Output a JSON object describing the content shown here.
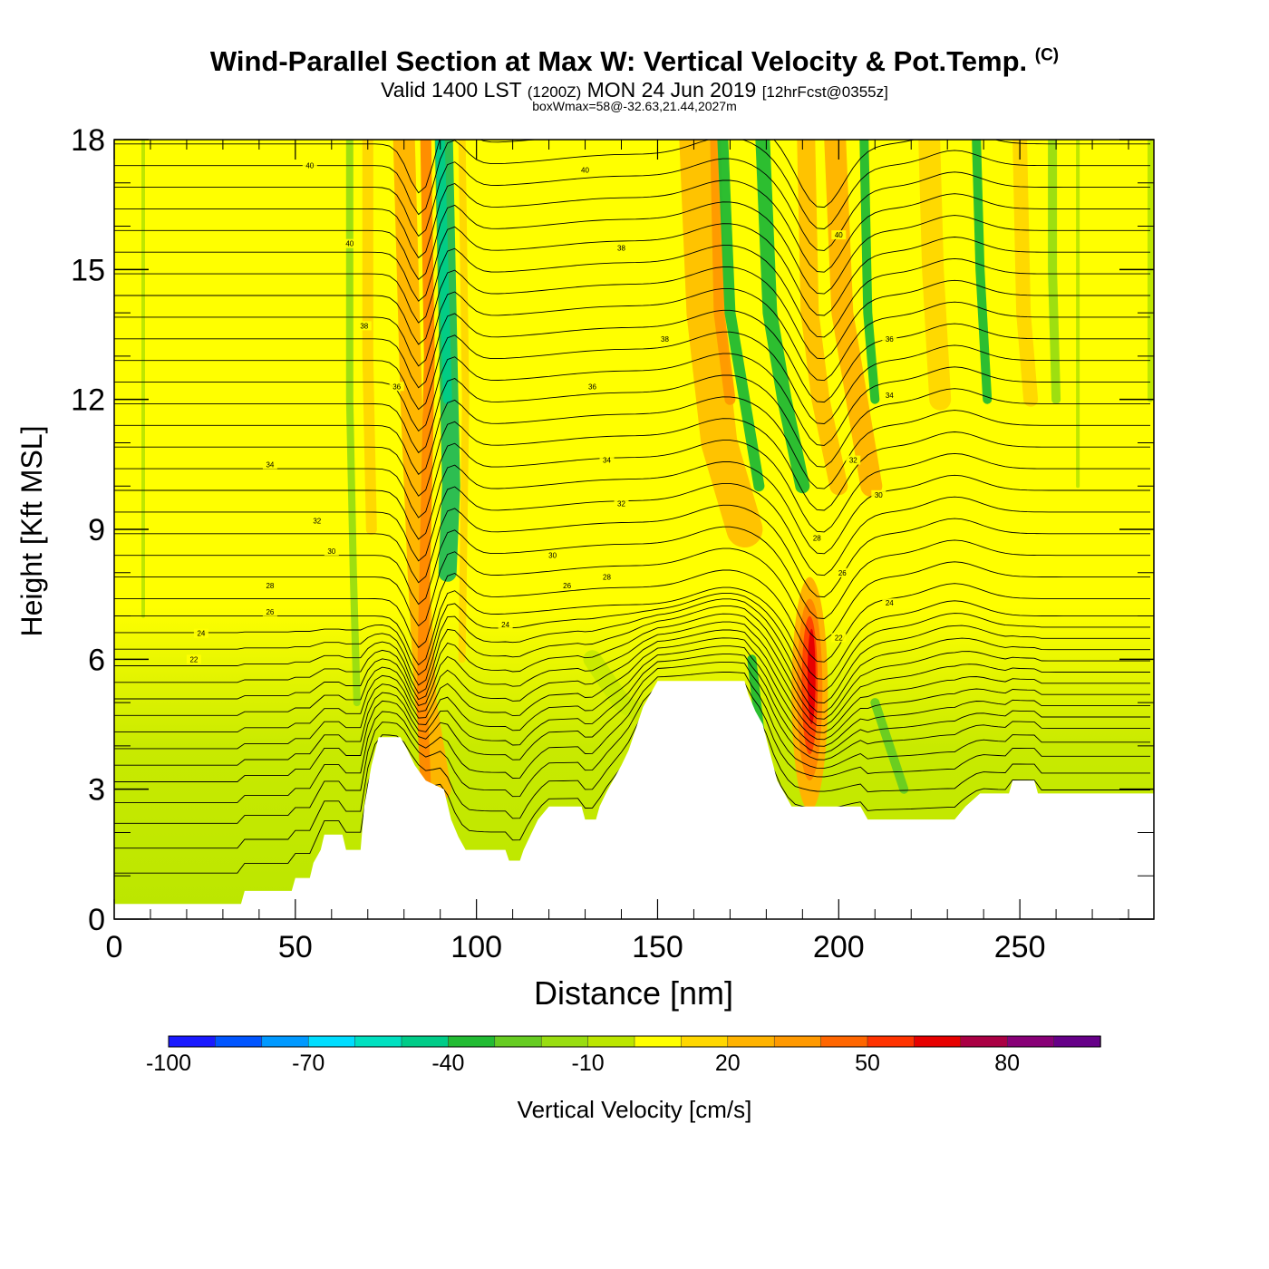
{
  "header": {
    "title": "Wind-Parallel Section at Max W: Vertical Velocity & Pot.Temp.",
    "copyright": "(C)",
    "valid_prefix": "Valid 1400 LST",
    "valid_utc": "(1200Z)",
    "valid_date": "MON 24 Jun 2019",
    "forecast": "[12hrFcst@0355z]",
    "box_info": "boxWmax=58@-32.63,21.44,2027m"
  },
  "chart_data": {
    "type": "heatmap",
    "xlabel": "Distance [nm]",
    "ylabel": "Height [Kft MSL]",
    "xlim": [
      0,
      287
    ],
    "ylim": [
      0,
      18
    ],
    "x_ticks": [
      0,
      50,
      100,
      150,
      200,
      250
    ],
    "y_ticks": [
      0,
      3,
      6,
      9,
      12,
      15,
      18
    ],
    "colorbar": {
      "label": "Vertical Velocity [cm/s]",
      "tick_labels": [
        "-100",
        "-70",
        "-40",
        "-10",
        "20",
        "50",
        "80"
      ],
      "tick_values": [
        -100,
        -70,
        -40,
        -10,
        20,
        50,
        80
      ],
      "colors": [
        "#1a1aff",
        "#0055ff",
        "#0099ff",
        "#00ddff",
        "#00e0c0",
        "#00cc88",
        "#22bb33",
        "#66cc22",
        "#99dd11",
        "#bbe600",
        "#ffff00",
        "#ffd700",
        "#ffb300",
        "#ff9900",
        "#ff6600",
        "#ff3300",
        "#e60000",
        "#aa0044",
        "#880077",
        "#660088"
      ]
    },
    "terrain_kft": [
      [
        0,
        0.35
      ],
      [
        35,
        0.35
      ],
      [
        36,
        0.65
      ],
      [
        49,
        0.65
      ],
      [
        50,
        0.95
      ],
      [
        54,
        0.95
      ],
      [
        55,
        1.3
      ],
      [
        57,
        1.6
      ],
      [
        58,
        1.95
      ],
      [
        63,
        1.95
      ],
      [
        64,
        1.6
      ],
      [
        68,
        1.6
      ],
      [
        69,
        2.6
      ],
      [
        71,
        3.55
      ],
      [
        73,
        4.2
      ],
      [
        79,
        4.2
      ],
      [
        81,
        3.9
      ],
      [
        83,
        3.55
      ],
      [
        86,
        3.2
      ],
      [
        91,
        3.0
      ],
      [
        93,
        2.3
      ],
      [
        95,
        1.9
      ],
      [
        97,
        1.6
      ],
      [
        108,
        1.6
      ],
      [
        109,
        1.35
      ],
      [
        112,
        1.35
      ],
      [
        113,
        1.6
      ],
      [
        115,
        1.95
      ],
      [
        117,
        2.3
      ],
      [
        120,
        2.6
      ],
      [
        129,
        2.6
      ],
      [
        130,
        2.3
      ],
      [
        133,
        2.3
      ],
      [
        134,
        2.6
      ],
      [
        136,
        2.95
      ],
      [
        138,
        3.25
      ],
      [
        140,
        3.55
      ],
      [
        142,
        3.9
      ],
      [
        146,
        4.9
      ],
      [
        148,
        5.2
      ],
      [
        150,
        5.5
      ],
      [
        174,
        5.5
      ],
      [
        175,
        5.2
      ],
      [
        177,
        4.8
      ],
      [
        179,
        4.5
      ],
      [
        181,
        3.85
      ],
      [
        183,
        3.2
      ],
      [
        185,
        2.9
      ],
      [
        187,
        2.6
      ],
      [
        206,
        2.6
      ],
      [
        208,
        2.3
      ],
      [
        232,
        2.3
      ],
      [
        235,
        2.6
      ],
      [
        239,
        2.9
      ],
      [
        247,
        2.9
      ],
      [
        248,
        3.2
      ],
      [
        254,
        3.2
      ],
      [
        255,
        2.9
      ],
      [
        287,
        2.9
      ]
    ],
    "contour_labels": [
      "40",
      "40",
      "40",
      "40",
      "38",
      "38",
      "38",
      "36",
      "36",
      "36",
      "34",
      "34",
      "34",
      "32",
      "32",
      "32",
      "30",
      "30",
      "30",
      "28",
      "28",
      "28",
      "26",
      "26",
      "26",
      "24",
      "24",
      "24",
      "22",
      "22"
    ]
  }
}
